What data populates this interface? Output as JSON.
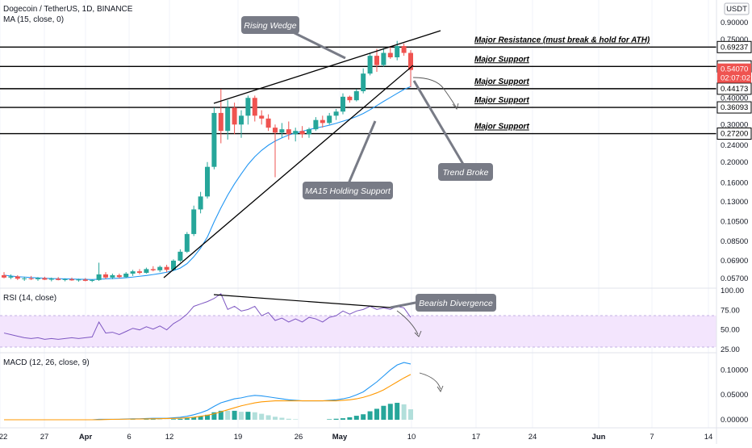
{
  "header": {
    "title": "Dogecoin / TetherUS, 1D, BINANCE",
    "indicator": "MA (15, close, 0)",
    "currency": "USDT"
  },
  "price_axis": {
    "ticks": [
      "0.90000",
      "0.75000",
      "0.40000",
      "0.30000",
      "0.24000",
      "0.20000",
      "0.16000",
      "0.13000",
      "0.10500",
      "0.08500",
      "0.06900",
      "0.05700"
    ],
    "current_price": "0.54070",
    "countdown": "02:07:02"
  },
  "levels": [
    {
      "value": "0.69237",
      "label": "Major Resistance (must break & hold for ATH)"
    },
    {
      "value": "0.56186",
      "label": "Major Support"
    },
    {
      "value": "0.44173",
      "label": "Major Support"
    },
    {
      "value": "0.36093",
      "label": "Major Support"
    },
    {
      "value": "0.27200",
      "label": "Major Support"
    }
  ],
  "annotations": {
    "rising_wedge": "Rising Wedge",
    "trend_broke": "Trend Broke",
    "ma15": "MA15 Holding Support",
    "bearish_div": "Bearish Divergence"
  },
  "rsi": {
    "label": "RSI (14, close)",
    "ticks": [
      "100.00",
      "75.00",
      "50.00",
      "25.00"
    ]
  },
  "macd": {
    "label": "MACD (12, 26, close, 9)",
    "ticks": [
      "0.10000",
      "0.05000",
      "0.00000"
    ]
  },
  "time_axis": [
    "22",
    "27",
    "Apr",
    "6",
    "12",
    "19",
    "26",
    "May",
    "10",
    "17",
    "24",
    "Jun",
    "7",
    "14"
  ],
  "colors": {
    "up": "#26a69a",
    "down": "#ef5350",
    "ma": "#2196f3",
    "rsi": "#7e57c2",
    "macd": "#2196f3",
    "signal": "#ff9800",
    "callout": "#787b86"
  },
  "chart_data": {
    "type": "candlestick",
    "title": "Dogecoin / TetherUS, 1D, BINANCE",
    "candles": [
      {
        "o": 0.059,
        "h": 0.061,
        "l": 0.057,
        "c": 0.0575
      },
      {
        "o": 0.0575,
        "h": 0.0595,
        "l": 0.0565,
        "c": 0.0582
      },
      {
        "o": 0.0582,
        "h": 0.059,
        "l": 0.056,
        "c": 0.0568
      },
      {
        "o": 0.0568,
        "h": 0.058,
        "l": 0.0555,
        "c": 0.057
      },
      {
        "o": 0.057,
        "h": 0.0585,
        "l": 0.056,
        "c": 0.0565
      },
      {
        "o": 0.0565,
        "h": 0.0578,
        "l": 0.0555,
        "c": 0.0572
      },
      {
        "o": 0.0572,
        "h": 0.058,
        "l": 0.056,
        "c": 0.0562
      },
      {
        "o": 0.0562,
        "h": 0.0575,
        "l": 0.0552,
        "c": 0.0568
      },
      {
        "o": 0.0568,
        "h": 0.0578,
        "l": 0.0558,
        "c": 0.056
      },
      {
        "o": 0.056,
        "h": 0.057,
        "l": 0.0552,
        "c": 0.0565
      },
      {
        "o": 0.0565,
        "h": 0.0575,
        "l": 0.0555,
        "c": 0.0558
      },
      {
        "o": 0.0558,
        "h": 0.0568,
        "l": 0.055,
        "c": 0.0563
      },
      {
        "o": 0.0563,
        "h": 0.0572,
        "l": 0.0552,
        "c": 0.0555
      },
      {
        "o": 0.0555,
        "h": 0.0565,
        "l": 0.0548,
        "c": 0.056
      },
      {
        "o": 0.056,
        "h": 0.0675,
        "l": 0.0555,
        "c": 0.0595
      },
      {
        "o": 0.0595,
        "h": 0.061,
        "l": 0.0565,
        "c": 0.0575
      },
      {
        "o": 0.0575,
        "h": 0.06,
        "l": 0.0565,
        "c": 0.059
      },
      {
        "o": 0.059,
        "h": 0.06,
        "l": 0.057,
        "c": 0.0578
      },
      {
        "o": 0.0578,
        "h": 0.061,
        "l": 0.0572,
        "c": 0.06
      },
      {
        "o": 0.06,
        "h": 0.0625,
        "l": 0.0585,
        "c": 0.0615
      },
      {
        "o": 0.0615,
        "h": 0.063,
        "l": 0.0595,
        "c": 0.0605
      },
      {
        "o": 0.0605,
        "h": 0.064,
        "l": 0.06,
        "c": 0.063
      },
      {
        "o": 0.063,
        "h": 0.065,
        "l": 0.0615,
        "c": 0.0622
      },
      {
        "o": 0.0622,
        "h": 0.0655,
        "l": 0.061,
        "c": 0.0645
      },
      {
        "o": 0.0645,
        "h": 0.066,
        "l": 0.061,
        "c": 0.0625
      },
      {
        "o": 0.0625,
        "h": 0.07,
        "l": 0.062,
        "c": 0.069
      },
      {
        "o": 0.069,
        "h": 0.078,
        "l": 0.068,
        "c": 0.076
      },
      {
        "o": 0.076,
        "h": 0.094,
        "l": 0.075,
        "c": 0.092
      },
      {
        "o": 0.092,
        "h": 0.125,
        "l": 0.09,
        "c": 0.12
      },
      {
        "o": 0.12,
        "h": 0.145,
        "l": 0.115,
        "c": 0.138
      },
      {
        "o": 0.138,
        "h": 0.2,
        "l": 0.135,
        "c": 0.19
      },
      {
        "o": 0.19,
        "h": 0.36,
        "l": 0.185,
        "c": 0.34
      },
      {
        "o": 0.34,
        "h": 0.44,
        "l": 0.245,
        "c": 0.28
      },
      {
        "o": 0.28,
        "h": 0.39,
        "l": 0.255,
        "c": 0.36
      },
      {
        "o": 0.36,
        "h": 0.38,
        "l": 0.27,
        "c": 0.3
      },
      {
        "o": 0.3,
        "h": 0.35,
        "l": 0.26,
        "c": 0.33
      },
      {
        "o": 0.33,
        "h": 0.41,
        "l": 0.3,
        "c": 0.4
      },
      {
        "o": 0.4,
        "h": 0.41,
        "l": 0.31,
        "c": 0.33
      },
      {
        "o": 0.33,
        "h": 0.35,
        "l": 0.3,
        "c": 0.32
      },
      {
        "o": 0.32,
        "h": 0.335,
        "l": 0.28,
        "c": 0.29
      },
      {
        "o": 0.29,
        "h": 0.3,
        "l": 0.17,
        "c": 0.275
      },
      {
        "o": 0.275,
        "h": 0.305,
        "l": 0.26,
        "c": 0.285
      },
      {
        "o": 0.285,
        "h": 0.31,
        "l": 0.255,
        "c": 0.27
      },
      {
        "o": 0.27,
        "h": 0.29,
        "l": 0.25,
        "c": 0.28
      },
      {
        "o": 0.28,
        "h": 0.295,
        "l": 0.26,
        "c": 0.27
      },
      {
        "o": 0.27,
        "h": 0.29,
        "l": 0.26,
        "c": 0.285
      },
      {
        "o": 0.285,
        "h": 0.325,
        "l": 0.28,
        "c": 0.315
      },
      {
        "o": 0.315,
        "h": 0.33,
        "l": 0.29,
        "c": 0.305
      },
      {
        "o": 0.305,
        "h": 0.34,
        "l": 0.3,
        "c": 0.33
      },
      {
        "o": 0.33,
        "h": 0.355,
        "l": 0.315,
        "c": 0.345
      },
      {
        "o": 0.345,
        "h": 0.42,
        "l": 0.335,
        "c": 0.405
      },
      {
        "o": 0.405,
        "h": 0.41,
        "l": 0.38,
        "c": 0.39
      },
      {
        "o": 0.39,
        "h": 0.44,
        "l": 0.385,
        "c": 0.43
      },
      {
        "o": 0.43,
        "h": 0.55,
        "l": 0.42,
        "c": 0.52
      },
      {
        "o": 0.52,
        "h": 0.65,
        "l": 0.51,
        "c": 0.63
      },
      {
        "o": 0.63,
        "h": 0.68,
        "l": 0.53,
        "c": 0.57
      },
      {
        "o": 0.57,
        "h": 0.685,
        "l": 0.56,
        "c": 0.65
      },
      {
        "o": 0.65,
        "h": 0.7,
        "l": 0.61,
        "c": 0.62
      },
      {
        "o": 0.62,
        "h": 0.74,
        "l": 0.6,
        "c": 0.7
      },
      {
        "o": 0.7,
        "h": 0.72,
        "l": 0.63,
        "c": 0.65
      },
      {
        "o": 0.65,
        "h": 0.67,
        "l": 0.45,
        "c": 0.5407
      }
    ],
    "ma15": [
      0.059,
      0.0585,
      0.058,
      0.0578,
      0.0575,
      0.0573,
      0.0571,
      0.0569,
      0.0568,
      0.0567,
      0.0566,
      0.0565,
      0.0564,
      0.0563,
      0.0565,
      0.0567,
      0.0569,
      0.0571,
      0.0574,
      0.0578,
      0.0583,
      0.0588,
      0.0594,
      0.0601,
      0.0609,
      0.062,
      0.0637,
      0.0668,
      0.072,
      0.079,
      0.089,
      0.105,
      0.122,
      0.14,
      0.158,
      0.176,
      0.195,
      0.212,
      0.227,
      0.24,
      0.251,
      0.26,
      0.268,
      0.274,
      0.279,
      0.284,
      0.289,
      0.293,
      0.298,
      0.304,
      0.311,
      0.318,
      0.327,
      0.338,
      0.352,
      0.368,
      0.385,
      0.402,
      0.42,
      0.438,
      0.452
    ],
    "rsi": [
      46,
      44,
      42,
      40,
      39,
      40,
      38,
      39,
      38,
      39,
      40,
      39,
      40,
      41,
      60,
      46,
      47,
      44,
      48,
      52,
      50,
      54,
      51,
      55,
      50,
      58,
      63,
      70,
      80,
      83,
      86,
      90,
      96,
      76,
      80,
      74,
      76,
      80,
      68,
      72,
      62,
      65,
      60,
      64,
      60,
      66,
      64,
      60,
      66,
      68,
      74,
      70,
      74,
      76,
      80,
      76,
      78,
      76,
      80,
      78,
      66
    ],
    "macd": [
      0,
      0,
      0,
      0,
      0,
      0,
      0,
      0,
      0,
      0,
      0,
      0,
      0,
      0,
      0.001,
      0.001,
      0.001,
      0.001,
      0.0015,
      0.002,
      0.002,
      0.0025,
      0.003,
      0.003,
      0.003,
      0.004,
      0.005,
      0.007,
      0.01,
      0.014,
      0.019,
      0.027,
      0.034,
      0.038,
      0.042,
      0.044,
      0.047,
      0.049,
      0.048,
      0.046,
      0.044,
      0.042,
      0.04,
      0.039,
      0.038,
      0.038,
      0.038,
      0.038,
      0.039,
      0.04,
      0.042,
      0.045,
      0.05,
      0.056,
      0.066,
      0.076,
      0.088,
      0.1,
      0.11,
      0.115,
      0.112
    ],
    "signal": [
      0,
      0,
      0,
      0,
      0,
      0,
      0,
      0,
      0,
      0,
      0,
      0,
      0,
      0,
      0,
      0.0005,
      0.0008,
      0.001,
      0.0012,
      0.0014,
      0.0016,
      0.0018,
      0.002,
      0.0022,
      0.0025,
      0.0028,
      0.0032,
      0.004,
      0.005,
      0.007,
      0.009,
      0.012,
      0.016,
      0.02,
      0.024,
      0.028,
      0.031,
      0.034,
      0.036,
      0.037,
      0.038,
      0.038,
      0.038,
      0.038,
      0.038,
      0.038,
      0.038,
      0.038,
      0.038,
      0.038,
      0.039,
      0.04,
      0.042,
      0.045,
      0.049,
      0.054,
      0.06,
      0.068,
      0.076,
      0.084,
      0.091
    ],
    "ylim": [
      0.0545,
      0.95
    ],
    "yscale": "log"
  }
}
